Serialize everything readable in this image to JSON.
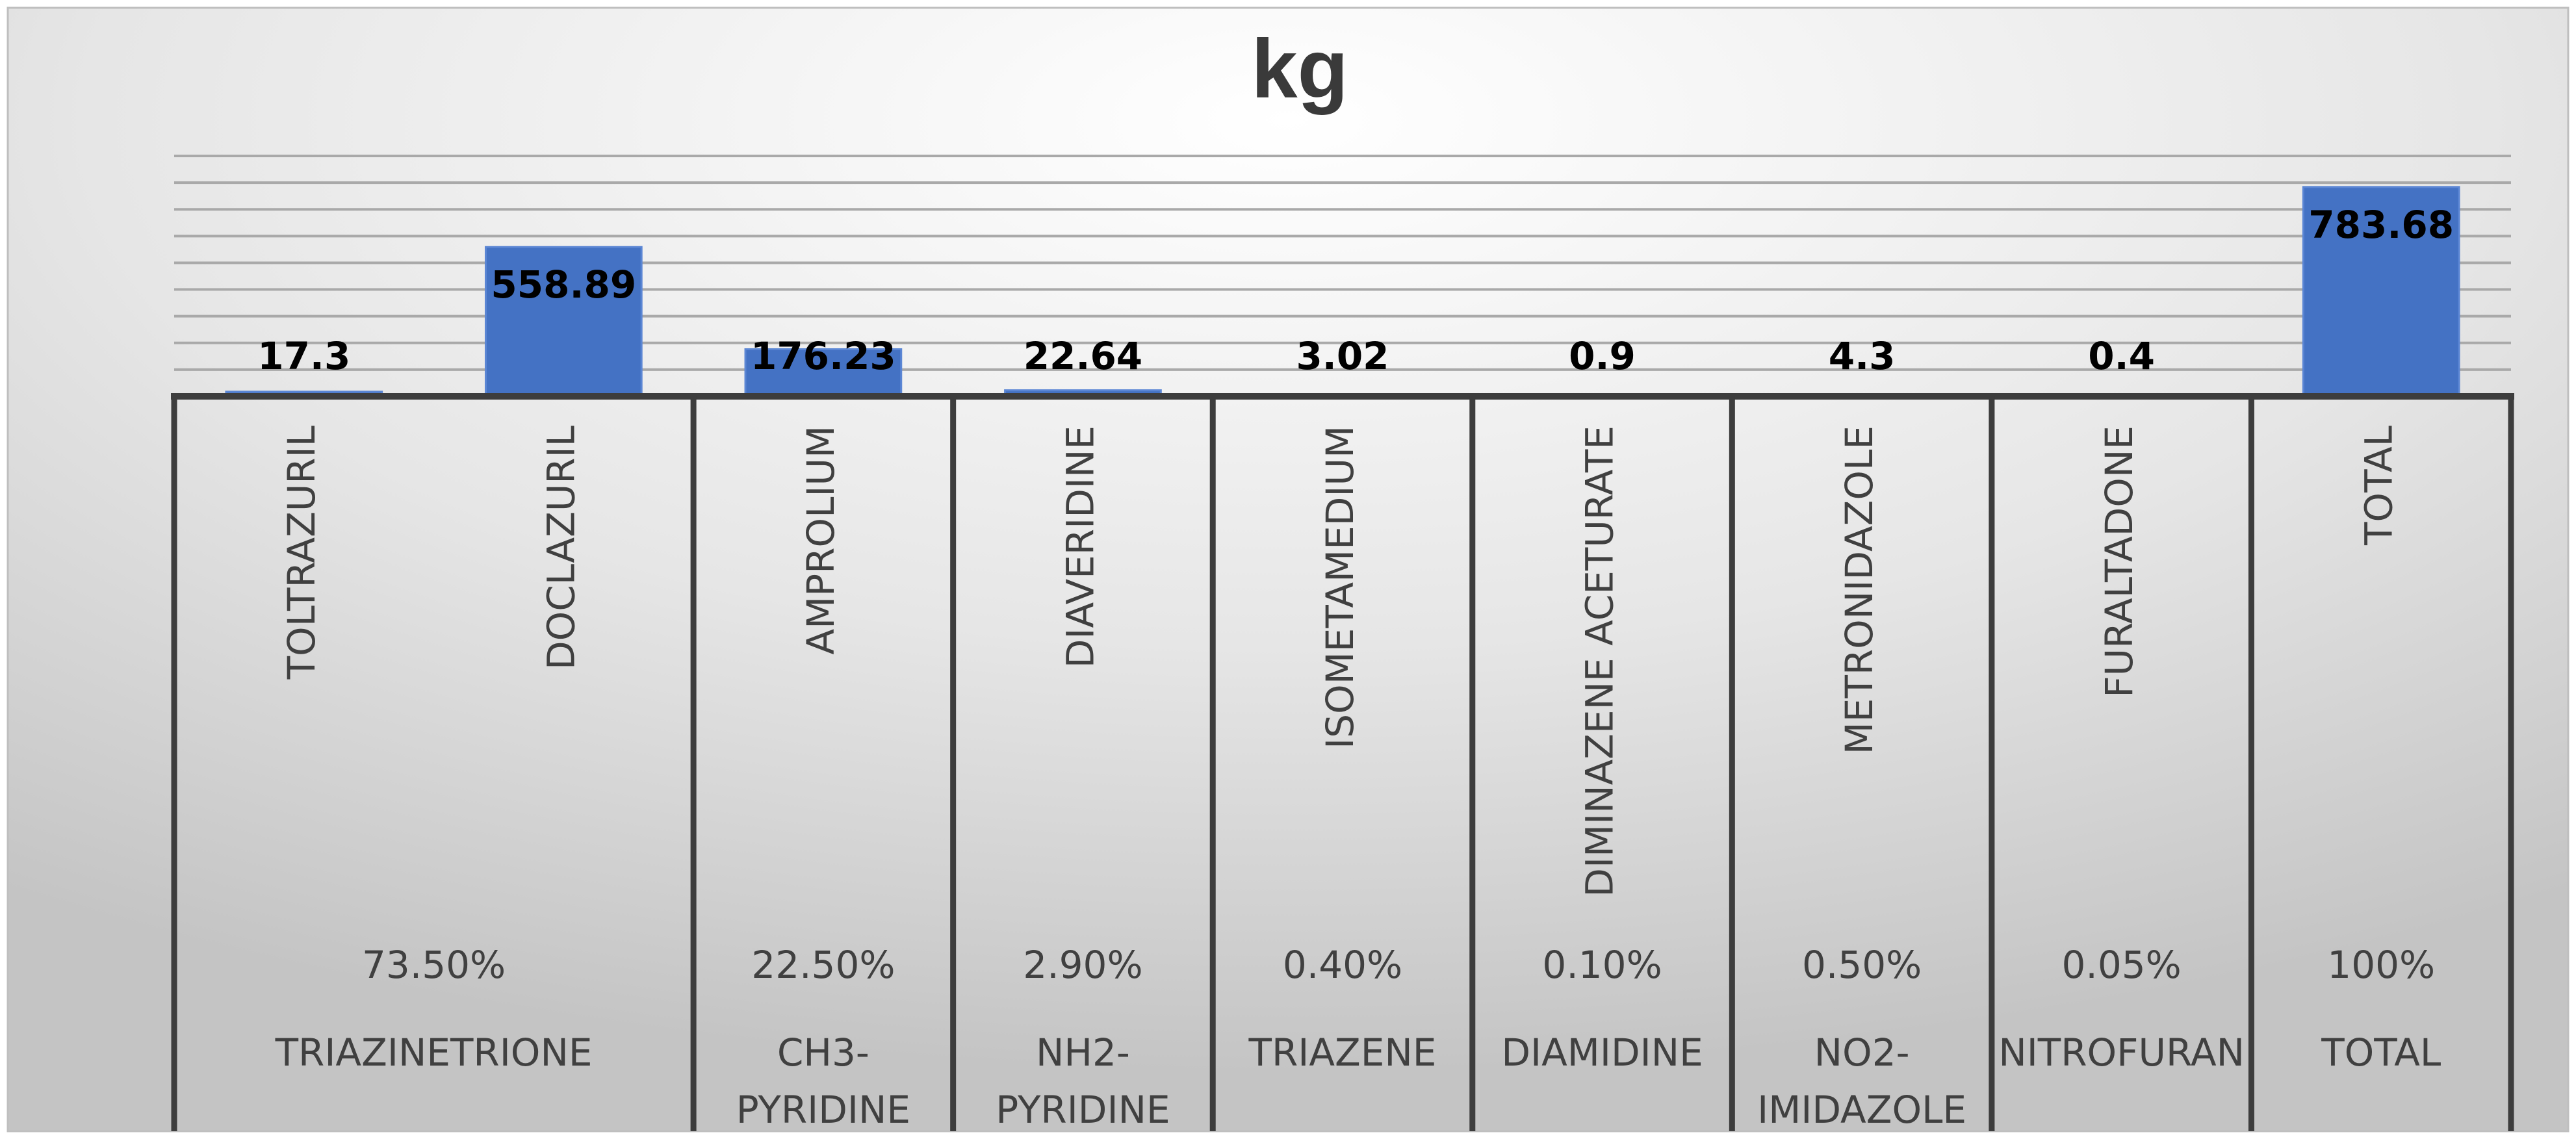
{
  "chart_data": {
    "type": "bar",
    "title": "kg",
    "categories": [
      "TOLTRAZURIL",
      "DOCLAZURIL",
      "AMPROLIUM",
      "DIAVERIDINE",
      "ISOMETAMEDIUM",
      "DIMINAZENE ACETURATE",
      "METRONIDAZOLE",
      "FURALTADONE",
      "TOTAL"
    ],
    "values": [
      17.3,
      558.89,
      176.23,
      22.64,
      3.02,
      0.9,
      4.3,
      0.4,
      783.68
    ],
    "data_labels": [
      "17.3",
      "558.89",
      "176.23",
      "22.64",
      "3.02",
      "0.9",
      "4.3",
      "0.4",
      "783.68"
    ],
    "ylim": [
      0,
      900
    ],
    "grid": true,
    "bar_color": "#4472c4",
    "groups": [
      {
        "name_lines": [
          "TRIAZINETRIONE"
        ],
        "percent": "73.50%",
        "span": 2
      },
      {
        "name_lines": [
          "CH3-",
          "PYRIDINE"
        ],
        "percent": "22.50%",
        "span": 1
      },
      {
        "name_lines": [
          "NH2-",
          "PYRIDINE"
        ],
        "percent": "2.90%",
        "span": 1
      },
      {
        "name_lines": [
          "TRIAZENE"
        ],
        "percent": "0.40%",
        "span": 1
      },
      {
        "name_lines": [
          "DIAMIDINE"
        ],
        "percent": "0.10%",
        "span": 1
      },
      {
        "name_lines": [
          "NO2-",
          "IMIDAZOLE"
        ],
        "percent": "0.50%",
        "span": 1
      },
      {
        "name_lines": [
          "NITROFURAN"
        ],
        "percent": "0.05%",
        "span": 1
      },
      {
        "name_lines": [
          "TOTAL"
        ],
        "percent": "100%",
        "span": 1
      }
    ]
  }
}
